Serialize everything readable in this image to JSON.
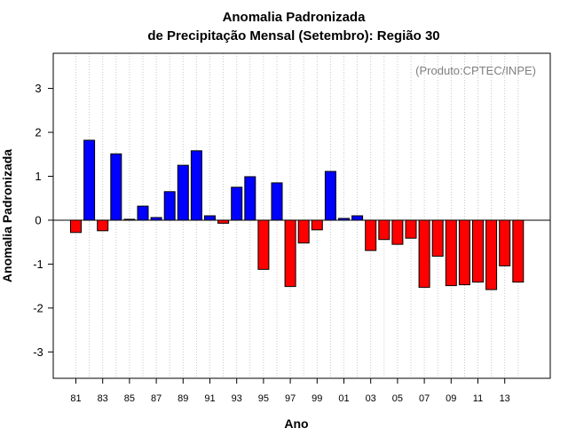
{
  "chart_data": {
    "type": "bar",
    "title": "Anomalia Padronizada",
    "subtitle": "de Precipitação Mensal (Setembro): Região 30",
    "credit": "(Produto:CPTEC/INPE)",
    "xlabel": "Ano",
    "ylabel": "Anomalia Padronizada",
    "ylim": [
      -3.6,
      3.8
    ],
    "yticks": [
      -3,
      -2,
      -1,
      0,
      1,
      2,
      3
    ],
    "grid": "vertical dotted",
    "colors": {
      "positive": "#0000ff",
      "negative": "#ff0000",
      "grid": "#bbbbbb"
    },
    "categories": [
      "81",
      "82",
      "83",
      "84",
      "85",
      "86",
      "87",
      "88",
      "89",
      "90",
      "91",
      "92",
      "93",
      "94",
      "95",
      "96",
      "97",
      "98",
      "99",
      "00",
      "01",
      "02",
      "03",
      "04",
      "05",
      "06",
      "07",
      "08",
      "09",
      "10",
      "11",
      "12",
      "13",
      "14"
    ],
    "tick_labels": [
      "81",
      "83",
      "85",
      "87",
      "89",
      "91",
      "93",
      "95",
      "97",
      "99",
      "01",
      "03",
      "05",
      "07",
      "09",
      "11",
      "13"
    ],
    "values": [
      -0.28,
      1.82,
      -0.24,
      1.51,
      0.02,
      0.32,
      0.06,
      0.65,
      1.25,
      1.58,
      0.1,
      -0.07,
      0.75,
      0.99,
      -1.12,
      0.85,
      -1.51,
      -0.52,
      -0.22,
      1.11,
      0.04,
      0.1,
      -0.69,
      -0.44,
      -0.55,
      -0.41,
      -1.53,
      -0.82,
      -1.49,
      -1.47,
      -1.41,
      -1.58,
      -1.04,
      -1.41
    ]
  }
}
